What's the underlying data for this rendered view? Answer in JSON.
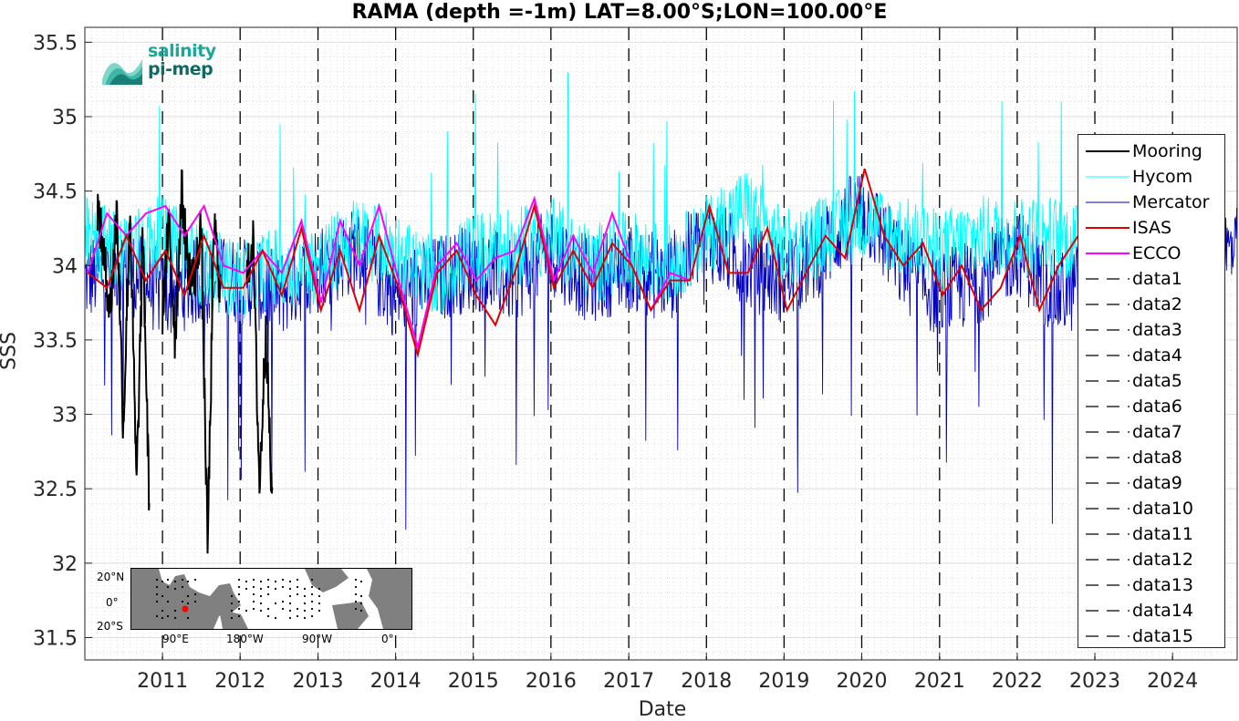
{
  "chart_data": {
    "type": "line",
    "title": "RAMA (depth =-1m) LAT=8.00°S;LON=100.00°E",
    "xlabel": "Date",
    "ylabel": "SSS",
    "xlim": [
      "2010-01-01",
      "2024-10-31"
    ],
    "ylim": [
      31.35,
      35.6
    ],
    "x_ticks": [
      "2011",
      "2012",
      "2013",
      "2014",
      "2015",
      "2016",
      "2017",
      "2018",
      "2019",
      "2020",
      "2021",
      "2022",
      "2023",
      "2024"
    ],
    "y_ticks": [
      "31.5",
      "32",
      "32.5",
      "33",
      "33.5",
      "34",
      "34.5",
      "35",
      "35.5"
    ],
    "grid": true,
    "legend_position": "right",
    "vertical_dashed_years": [
      2011,
      2012,
      2013,
      2014,
      2015,
      2016,
      2017,
      2018,
      2019,
      2020,
      2021,
      2022,
      2023,
      2024
    ],
    "series": [
      {
        "name": "Mooring",
        "color": "#000000",
        "x": [
          "2010-03-01",
          "2010-05-01",
          "2010-06-01",
          "2010-07-01",
          "2010-08-01",
          "2010-09-01",
          "2010-10-01",
          "2010-11-01",
          "2011-01-01",
          "2011-02-01",
          "2011-03-01",
          "2011-04-01",
          "2011-05-01",
          "2011-06-01",
          "2011-07-01",
          "2011-08-01",
          "2011-09-01",
          "2011-10-01",
          "2012-02-01",
          "2012-03-01",
          "2012-04-01",
          "2012-05-01",
          "2012-06-01"
        ],
        "y": [
          34.4,
          33.7,
          34.4,
          32.9,
          34.4,
          32.5,
          34.2,
          32.3,
          33.7,
          34.3,
          33.5,
          34.5,
          34.0,
          33.9,
          34.3,
          32.1,
          34.3,
          33.8,
          33.9,
          34.2,
          32.5,
          33.6,
          32.3
        ]
      },
      {
        "name": "Hycom",
        "color": "#00ffff",
        "x": [
          "2010-01-01",
          "2010-07-01",
          "2011-01-01",
          "2011-07-01",
          "2012-01-01",
          "2012-07-01",
          "2013-01-01",
          "2013-07-01",
          "2014-01-01",
          "2014-07-01",
          "2015-01-01",
          "2015-07-01",
          "2016-01-01",
          "2016-07-01",
          "2017-01-01",
          "2017-07-01",
          "2018-01-01",
          "2018-07-01",
          "2019-01-01",
          "2019-07-01",
          "2020-01-01",
          "2020-07-01",
          "2021-01-01",
          "2021-07-01",
          "2022-01-01",
          "2022-07-01",
          "2023-01-01"
        ],
        "y": [
          34.2,
          34.1,
          34.2,
          34.0,
          33.9,
          34.0,
          34.0,
          34.2,
          34.1,
          33.9,
          34.1,
          34.1,
          34.2,
          34.0,
          34.1,
          34.0,
          34.2,
          34.4,
          34.1,
          34.2,
          34.3,
          34.2,
          34.1,
          34.2,
          34.2,
          34.2,
          34.1
        ]
      },
      {
        "name": "Mercator",
        "color": "#0000c8",
        "x": [
          "2010-01-01",
          "2010-07-01",
          "2011-01-01",
          "2011-07-01",
          "2012-01-01",
          "2012-07-01",
          "2013-01-01",
          "2013-07-01",
          "2014-01-01",
          "2014-07-01",
          "2015-01-01",
          "2015-07-01",
          "2016-01-01",
          "2016-07-01",
          "2017-01-01",
          "2017-07-01",
          "2018-01-01",
          "2018-07-01",
          "2019-01-01",
          "2019-07-01",
          "2020-01-01",
          "2020-07-01",
          "2021-01-01",
          "2021-07-01",
          "2022-01-01",
          "2022-07-01",
          "2023-01-01",
          "2023-07-01",
          "2024-01-01",
          "2024-07-01"
        ],
        "y": [
          33.9,
          34.0,
          33.8,
          33.9,
          33.9,
          33.8,
          34.0,
          34.1,
          33.8,
          33.9,
          34.0,
          33.9,
          34.1,
          33.9,
          34.0,
          33.9,
          34.2,
          34.0,
          33.9,
          34.1,
          34.4,
          34.0,
          33.8,
          33.9,
          34.1,
          33.8,
          33.9,
          34.0,
          34.0,
          34.1
        ]
      },
      {
        "name": "ISAS",
        "color": "#e00000",
        "x": [
          "2010-01-15",
          "2010-04-15",
          "2010-07-15",
          "2010-10-15",
          "2011-01-15",
          "2011-04-15",
          "2011-07-15",
          "2011-10-15",
          "2012-01-15",
          "2012-04-15",
          "2012-07-15",
          "2012-10-15",
          "2013-01-15",
          "2013-04-15",
          "2013-07-15",
          "2013-10-15",
          "2014-01-15",
          "2014-04-15",
          "2014-07-15",
          "2014-10-15",
          "2015-01-15",
          "2015-04-15",
          "2015-07-15",
          "2015-10-15",
          "2016-01-15",
          "2016-04-15",
          "2016-07-15",
          "2016-10-15",
          "2017-01-15",
          "2017-04-15",
          "2017-07-15",
          "2017-10-15",
          "2018-01-15",
          "2018-04-15",
          "2018-07-15",
          "2018-10-15",
          "2019-01-15",
          "2019-04-15",
          "2019-07-15",
          "2019-10-15",
          "2020-01-15",
          "2020-04-15",
          "2020-07-15",
          "2020-10-15",
          "2021-01-15",
          "2021-04-15",
          "2021-07-15",
          "2021-10-15",
          "2022-01-15",
          "2022-04-15",
          "2022-07-15",
          "2022-10-15"
        ],
        "y": [
          33.95,
          33.85,
          34.2,
          33.9,
          34.1,
          33.8,
          34.2,
          33.85,
          33.85,
          34.1,
          33.8,
          34.25,
          33.7,
          34.1,
          33.7,
          34.2,
          33.85,
          33.4,
          33.95,
          34.1,
          33.8,
          33.6,
          33.95,
          34.4,
          33.85,
          34.1,
          33.85,
          34.15,
          34.0,
          33.7,
          33.9,
          33.9,
          34.4,
          33.95,
          33.95,
          34.25,
          33.7,
          33.95,
          34.2,
          34.05,
          34.65,
          34.2,
          34.0,
          34.15,
          33.8,
          34.0,
          33.7,
          33.85,
          34.2,
          33.7,
          34.0,
          34.2
        ]
      },
      {
        "name": "ECCO",
        "color": "#ff00ff",
        "x": [
          "2010-01-15",
          "2010-04-15",
          "2010-07-15",
          "2010-10-15",
          "2011-01-15",
          "2011-04-15",
          "2011-07-15",
          "2011-10-15",
          "2012-01-15",
          "2012-04-15",
          "2012-07-15",
          "2012-10-15",
          "2013-01-15",
          "2013-04-15",
          "2013-07-15",
          "2013-10-15",
          "2014-01-15",
          "2014-04-15",
          "2014-07-15",
          "2014-10-15",
          "2015-01-15",
          "2015-04-15",
          "2015-07-15",
          "2015-10-15",
          "2016-01-15",
          "2016-04-15",
          "2016-07-15",
          "2016-10-15",
          "2017-01-15",
          "2017-04-15",
          "2017-07-15",
          "2017-10-15"
        ],
        "y": [
          33.95,
          34.35,
          34.2,
          34.35,
          34.4,
          34.2,
          34.4,
          34.0,
          33.95,
          34.1,
          33.95,
          34.3,
          33.75,
          34.3,
          34.0,
          34.4,
          33.9,
          33.45,
          34.0,
          34.15,
          33.9,
          34.05,
          34.1,
          34.45,
          33.9,
          34.2,
          33.95,
          34.35,
          34.0,
          33.7,
          33.95,
          33.9
        ]
      }
    ],
    "legend_entries": [
      "Mooring",
      "Hycom",
      "Mercator",
      "ISAS",
      "ECCO",
      "data1",
      "data2",
      "data3",
      "data4",
      "data5",
      "data6",
      "data7",
      "data8",
      "data9",
      "data10",
      "data11",
      "data12",
      "data13",
      "data14",
      "data15"
    ]
  },
  "logo": {
    "line1": "salinity",
    "line2": "pi-mep"
  },
  "inset_map": {
    "lat_labels": [
      "20°N",
      "0°",
      "20°S"
    ],
    "lon_labels": [
      "90°E",
      "180°W",
      "90°W",
      "0°"
    ],
    "marker_color": "#ff0000"
  }
}
